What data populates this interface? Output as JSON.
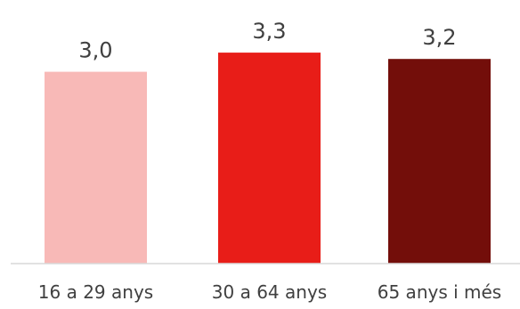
{
  "chart_data": {
    "type": "bar",
    "categories": [
      "16 a 29 anys",
      "30 a 64 anys",
      "65 anys i més"
    ],
    "values": [
      3.0,
      3.3,
      3.2
    ],
    "value_labels": [
      "3,0",
      "3,3",
      "3,2"
    ],
    "colors": [
      "#F8B9B7",
      "#E81D18",
      "#730E0A"
    ],
    "title": "",
    "xlabel": "",
    "ylabel": "",
    "ylim": [
      0,
      3.5
    ],
    "grid": false,
    "legend": "none"
  }
}
